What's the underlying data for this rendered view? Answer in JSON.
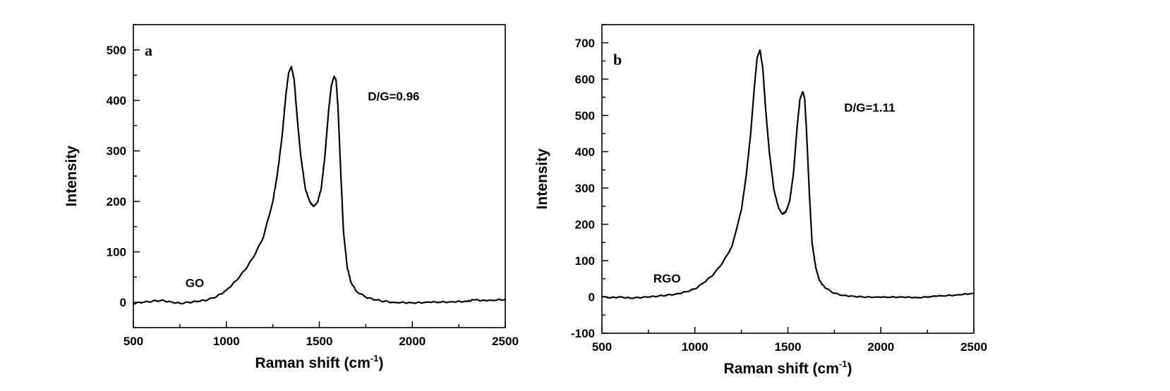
{
  "chart_data": [
    {
      "type": "line",
      "panel_label": "a",
      "xlabel": "Raman shift (cm",
      "xlabel_superscript": "-1",
      "xlabel_suffix": ")",
      "ylabel": "Intensity",
      "xlim": [
        500,
        2500
      ],
      "ylim": [
        -50,
        550
      ],
      "xticks": [
        500,
        1000,
        1500,
        2000,
        2500
      ],
      "yticks": [
        0,
        100,
        200,
        300,
        400,
        500
      ],
      "grid": false,
      "annotations": [
        {
          "text": "GO",
          "x": 830,
          "y": 30
        },
        {
          "text": "D/G=0.96",
          "x": 1900,
          "y": 400
        }
      ],
      "series": [
        {
          "x": [
            500,
            550,
            600,
            650,
            700,
            750,
            800,
            850,
            900,
            950,
            1000,
            1050,
            1100,
            1150,
            1200,
            1250,
            1275,
            1300,
            1320,
            1335,
            1350,
            1365,
            1380,
            1400,
            1425,
            1450,
            1470,
            1490,
            1510,
            1530,
            1550,
            1565,
            1580,
            1590,
            1600,
            1615,
            1630,
            1650,
            1670,
            1700,
            1750,
            1800,
            1850,
            1900,
            2000,
            2100,
            2200,
            2300,
            2330,
            2400,
            2500
          ],
          "y": [
            -2,
            0,
            2,
            4,
            1,
            -2,
            0,
            2,
            5,
            12,
            24,
            42,
            64,
            92,
            130,
            200,
            255,
            330,
            410,
            455,
            467,
            440,
            370,
            290,
            225,
            198,
            190,
            198,
            225,
            290,
            380,
            430,
            448,
            440,
            390,
            260,
            140,
            70,
            40,
            22,
            10,
            5,
            2,
            0,
            -1,
            0,
            1,
            2,
            5,
            3,
            6
          ]
        }
      ]
    },
    {
      "type": "line",
      "panel_label": "b",
      "xlabel": "Raman shift (cm",
      "xlabel_superscript": "-1",
      "xlabel_suffix": ")",
      "ylabel": "Intensity",
      "xlim": [
        500,
        2500
      ],
      "ylim": [
        -100,
        750
      ],
      "xticks": [
        500,
        1000,
        1500,
        2000,
        2500
      ],
      "yticks": [
        -100,
        0,
        100,
        200,
        300,
        400,
        500,
        600,
        700
      ],
      "grid": false,
      "annotations": [
        {
          "text": "RGO",
          "x": 850,
          "y": 40
        },
        {
          "text": "D/G=1.11",
          "x": 1940,
          "y": 510
        }
      ],
      "series": [
        {
          "x": [
            500,
            550,
            600,
            650,
            700,
            750,
            800,
            850,
            900,
            950,
            1000,
            1050,
            1100,
            1150,
            1200,
            1250,
            1275,
            1300,
            1320,
            1335,
            1350,
            1365,
            1380,
            1400,
            1425,
            1450,
            1470,
            1490,
            1510,
            1530,
            1550,
            1565,
            1580,
            1590,
            1600,
            1615,
            1630,
            1650,
            1670,
            1700,
            1750,
            1800,
            1850,
            1900,
            2000,
            2100,
            2200,
            2300,
            2400,
            2500
          ],
          "y": [
            0,
            -2,
            0,
            -3,
            -2,
            0,
            2,
            5,
            8,
            14,
            22,
            40,
            62,
            95,
            140,
            240,
            330,
            450,
            580,
            660,
            680,
            630,
            520,
            400,
            295,
            245,
            228,
            235,
            265,
            340,
            470,
            545,
            565,
            548,
            460,
            290,
            150,
            80,
            45,
            25,
            10,
            4,
            2,
            0,
            -1,
            0,
            -2,
            2,
            5,
            10
          ]
        }
      ]
    }
  ]
}
